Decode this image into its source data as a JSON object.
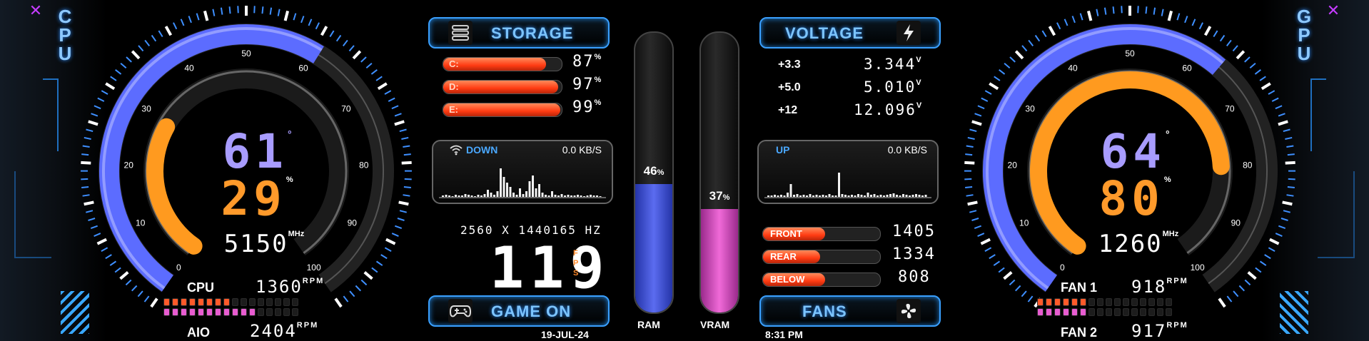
{
  "cpu": {
    "side_label": "CPU",
    "temp": "61",
    "temp_unit": "°",
    "load": "29",
    "load_unit": "%",
    "clock": "5150",
    "clock_unit": "MHz",
    "temp_level": 0.61,
    "load_level": 0.29,
    "fan_label": "CPU",
    "fan_rpm": "1360",
    "pump_label": "AIO",
    "pump_rpm": "2404",
    "rpm_unit": "RPM",
    "scale": [
      "0",
      "10",
      "20",
      "30",
      "40",
      "50",
      "60",
      "70",
      "80",
      "90",
      "100"
    ]
  },
  "gpu": {
    "side_label": "GPU",
    "temp": "64",
    "temp_unit": "°",
    "load": "80",
    "load_unit": "%",
    "clock": "1260",
    "clock_unit": "MHz",
    "temp_level": 0.64,
    "load_level": 0.8,
    "fan1_label": "FAN 1",
    "fan1_rpm": "918",
    "fan2_label": "FAN 2",
    "fan2_rpm": "917",
    "rpm_unit": "RPM",
    "scale": [
      "0",
      "10",
      "20",
      "30",
      "40",
      "50",
      "60",
      "70",
      "80",
      "90",
      "100"
    ]
  },
  "storage": {
    "title": "STORAGE",
    "drives": [
      {
        "label": "C:",
        "value": "87",
        "level": 0.87
      },
      {
        "label": "D:",
        "value": "97",
        "level": 0.97
      },
      {
        "label": "E:",
        "value": "99",
        "level": 0.99
      }
    ],
    "unit": "%"
  },
  "network": {
    "down_label": "DOWN",
    "down_rate": "0.0 KB/S",
    "up_label": "UP",
    "up_rate": "0.0 KB/S"
  },
  "display": {
    "resolution": "2560 X 1440",
    "refresh": "165 HZ",
    "fps": "119",
    "fps_unit": "FPS"
  },
  "game": {
    "title": "GAME ON"
  },
  "date": "19-JUL-24",
  "time": "8:31 PM",
  "ram": {
    "label": "RAM",
    "value": "46",
    "unit": "%",
    "level": 0.46
  },
  "vram": {
    "label": "VRAM",
    "value": "37",
    "unit": "%",
    "level": 0.37
  },
  "voltage": {
    "title": "VOLTAGE",
    "rails": [
      {
        "name": "+3.3",
        "value": "3.344",
        "unit": "V"
      },
      {
        "name": "+5.0",
        "value": "5.010",
        "unit": "V"
      },
      {
        "name": "+12",
        "value": "12.096",
        "unit": "V"
      }
    ]
  },
  "fans": {
    "title": "FANS",
    "items": [
      {
        "name": "FRONT",
        "rpm": "1405",
        "level": 0.53
      },
      {
        "name": "REAR",
        "rpm": "1334",
        "level": 0.49
      },
      {
        "name": "BELOW",
        "rpm": "808",
        "level": 0.53
      }
    ]
  },
  "icons": {
    "storage": "storage-icon",
    "voltage": "lightning-icon",
    "game": "gamepad-icon",
    "fans": "fan-icon",
    "wifi": "wifi-icon",
    "close": "close-icon"
  },
  "colors": {
    "gauge_blue": "#5c6cff",
    "gauge_orange": "#ff9a1f",
    "accent_blue": "#3aa0ff",
    "bar_orange": "#ff4a1c",
    "ram_blue": "#3b4fd6",
    "vram_pink": "#d94ac6",
    "led_orange": "#ff5a2a",
    "led_pink": "#e85cd0"
  }
}
